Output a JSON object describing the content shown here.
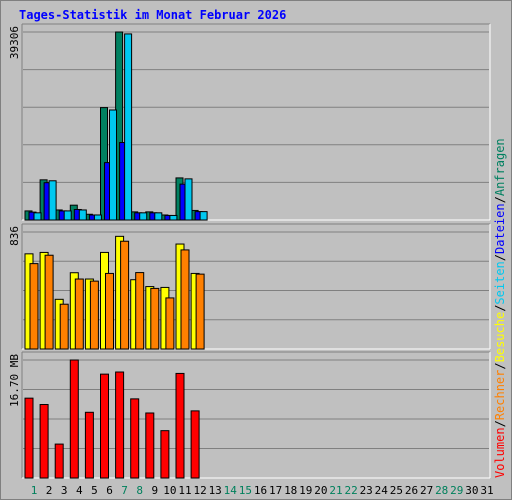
{
  "title": "Tages-Statistik im Monat Februar 2026",
  "chart_data": [
    {
      "type": "bar",
      "panel": "top",
      "ytick": "39306",
      "ymax": 39306,
      "series": [
        {
          "name": "Anfragen",
          "color": "#008060",
          "values": [
            1900,
            8400,
            2100,
            3100,
            1200,
            23500,
            39306,
            1700,
            1700,
            1050,
            8800,
            2000
          ]
        },
        {
          "name": "Dateien",
          "color": "#0000ff",
          "values": [
            1650,
            7800,
            1900,
            2200,
            1050,
            12000,
            16200,
            1500,
            1500,
            950,
            7500,
            1750
          ]
        },
        {
          "name": "Seiten",
          "color": "#00c8f0",
          "values": [
            1500,
            8200,
            1900,
            2100,
            1050,
            23000,
            38900,
            1500,
            1500,
            950,
            8600,
            1750
          ]
        }
      ]
    },
    {
      "type": "bar",
      "panel": "middle",
      "ytick": "836",
      "ymax": 836,
      "series": [
        {
          "name": "Besuche",
          "color": "#ffff00",
          "values": [
            680,
            690,
            355,
            545,
            500,
            690,
            805,
            495,
            446,
            440,
            750,
            540
          ]
        },
        {
          "name": "Rechner",
          "color": "#ff8000",
          "values": [
            610,
            670,
            320,
            500,
            485,
            540,
            770,
            546,
            433,
            365,
            708,
            535
          ]
        }
      ]
    },
    {
      "type": "bar",
      "panel": "bottom",
      "ytick": "16.70 MB",
      "ymax": 16.7,
      "series": [
        {
          "name": "Volumen",
          "color": "#ff0000",
          "values": [
            11.3,
            10.4,
            4.8,
            16.7,
            9.3,
            14.7,
            15.0,
            11.2,
            9.2,
            6.7,
            14.8,
            9.5
          ]
        }
      ]
    }
  ],
  "legend_right": [
    {
      "label": "Volumen",
      "color": "#ff0000"
    },
    {
      "label": "/",
      "color": "#000000"
    },
    {
      "label": "Rechner",
      "color": "#ff8000"
    },
    {
      "label": "/",
      "color": "#000000"
    },
    {
      "label": "Besuche",
      "color": "#ffff00"
    },
    {
      "label": "/",
      "color": "#000000"
    },
    {
      "label": "Seiten",
      "color": "#00c8f0"
    },
    {
      "label": "/",
      "color": "#000000"
    },
    {
      "label": "Dateien",
      "color": "#0000ff"
    },
    {
      "label": "/",
      "color": "#000000"
    },
    {
      "label": "Anfragen",
      "color": "#008060"
    }
  ],
  "days": [
    {
      "label": "1",
      "weekend": true
    },
    {
      "label": "2",
      "weekend": false
    },
    {
      "label": "3",
      "weekend": false
    },
    {
      "label": "4",
      "weekend": false
    },
    {
      "label": "5",
      "weekend": false
    },
    {
      "label": "6",
      "weekend": false
    },
    {
      "label": "7",
      "weekend": true
    },
    {
      "label": "8",
      "weekend": true
    },
    {
      "label": "9",
      "weekend": false
    },
    {
      "label": "10",
      "weekend": false
    },
    {
      "label": "11",
      "weekend": false
    },
    {
      "label": "12",
      "weekend": false
    },
    {
      "label": "13",
      "weekend": false
    },
    {
      "label": "14",
      "weekend": true
    },
    {
      "label": "15",
      "weekend": true
    },
    {
      "label": "16",
      "weekend": false
    },
    {
      "label": "17",
      "weekend": false
    },
    {
      "label": "18",
      "weekend": false
    },
    {
      "label": "19",
      "weekend": false
    },
    {
      "label": "20",
      "weekend": false
    },
    {
      "label": "21",
      "weekend": true
    },
    {
      "label": "22",
      "weekend": true
    },
    {
      "label": "23",
      "weekend": false
    },
    {
      "label": "24",
      "weekend": false
    },
    {
      "label": "25",
      "weekend": false
    },
    {
      "label": "26",
      "weekend": false
    },
    {
      "label": "27",
      "weekend": false
    },
    {
      "label": "28",
      "weekend": true
    },
    {
      "label": "29",
      "weekend": true
    },
    {
      "label": "30",
      "weekend": false
    },
    {
      "label": "31",
      "weekend": false
    }
  ],
  "colors": {
    "weekend": "#00805c",
    "weekday": "#000000",
    "grid": "#808080",
    "frame": "#808080",
    "title": "#0000ff"
  }
}
